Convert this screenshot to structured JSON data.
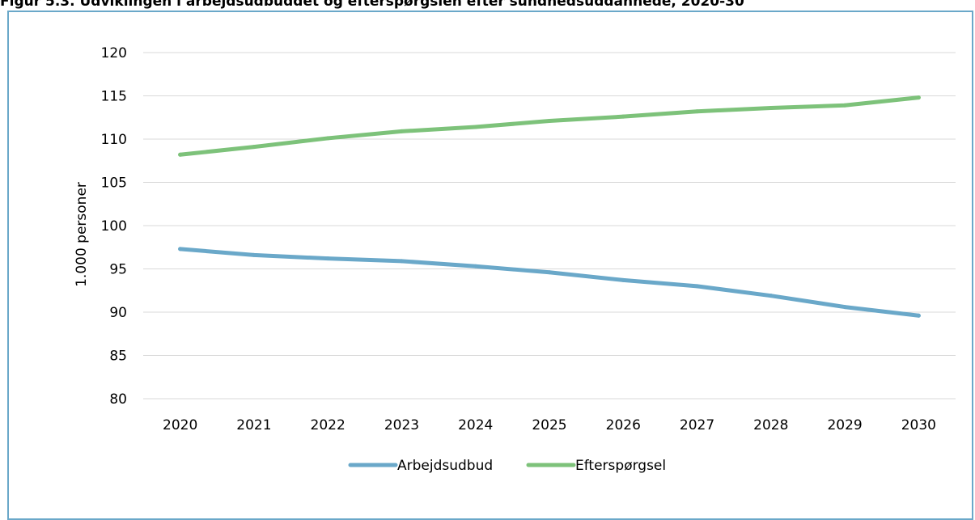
{
  "figure": {
    "title": "Figur 5.3. Udviklingen i arbejdsudbuddet og efterspørgslen efter sundhedsuddannede, 2020-30"
  },
  "chart_data": {
    "type": "line",
    "x": [
      "2020",
      "2021",
      "2022",
      "2023",
      "2024",
      "2025",
      "2026",
      "2027",
      "2028",
      "2029",
      "2030"
    ],
    "series": [
      {
        "name": "Arbejdsudbud",
        "color": "#6aa8c9",
        "values": [
          97.3,
          96.6,
          96.2,
          95.9,
          95.3,
          94.6,
          93.7,
          93.0,
          91.9,
          90.6,
          89.6
        ]
      },
      {
        "name": "Efterspørgsel",
        "color": "#7dc27a",
        "values": [
          108.2,
          109.1,
          110.1,
          110.9,
          111.4,
          112.1,
          112.6,
          113.2,
          113.6,
          113.9,
          114.8
        ]
      }
    ],
    "ylabel": "1.000 personer",
    "xlabel": "",
    "ylim": [
      80,
      120
    ],
    "yticks": [
      "80",
      "85",
      "90",
      "95",
      "100",
      "105",
      "110",
      "115",
      "120"
    ],
    "grid": true,
    "legend_position": "bottom"
  }
}
